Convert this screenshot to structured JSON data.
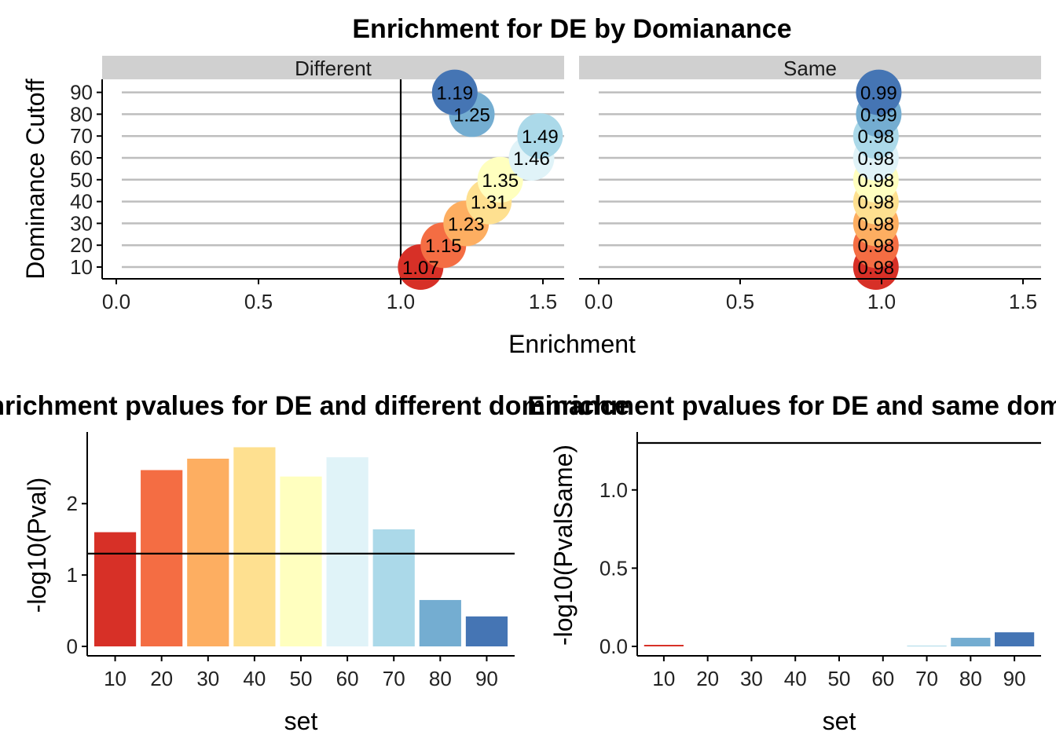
{
  "colors": {
    "10": "#d73027",
    "20": "#f46d43",
    "30": "#fdae61",
    "40": "#fee090",
    "50": "#ffffbf",
    "60": "#e0f3f8",
    "70": "#abd9e9",
    "80": "#74add1",
    "90": "#4575b4",
    "strip": "#d0d0d0",
    "gridline": "#bebebe"
  },
  "chart_data": [
    {
      "type": "scatter",
      "title": "Enrichment for DE by Domianance",
      "xlabel": "Enrichment",
      "ylabel": "Dominance Cutoff",
      "xlim": [
        0,
        1.5
      ],
      "x_ticks": [
        "0.0",
        "0.5",
        "1.0",
        "1.5"
      ],
      "y_ticks": [
        "10",
        "20",
        "30",
        "40",
        "50",
        "60",
        "70",
        "80",
        "90"
      ],
      "reference_x": 1.0,
      "panels": [
        {
          "strip": "Different",
          "points": [
            {
              "cutoff": 10,
              "x": 1.07,
              "label": "1.07"
            },
            {
              "cutoff": 20,
              "x": 1.15,
              "label": "1.15"
            },
            {
              "cutoff": 30,
              "x": 1.23,
              "label": "1.23"
            },
            {
              "cutoff": 40,
              "x": 1.31,
              "label": "1.31"
            },
            {
              "cutoff": 50,
              "x": 1.35,
              "label": "1.35"
            },
            {
              "cutoff": 60,
              "x": 1.46,
              "label": "1.46"
            },
            {
              "cutoff": 70,
              "x": 1.49,
              "label": "1.49"
            },
            {
              "cutoff": 80,
              "x": 1.25,
              "label": "1.25"
            },
            {
              "cutoff": 90,
              "x": 1.19,
              "label": "1.19"
            }
          ]
        },
        {
          "strip": "Same",
          "points": [
            {
              "cutoff": 10,
              "x": 0.98,
              "label": "0.98"
            },
            {
              "cutoff": 20,
              "x": 0.98,
              "label": "0.98"
            },
            {
              "cutoff": 30,
              "x": 0.98,
              "label": "0.98"
            },
            {
              "cutoff": 40,
              "x": 0.98,
              "label": "0.98"
            },
            {
              "cutoff": 50,
              "x": 0.98,
              "label": "0.98"
            },
            {
              "cutoff": 60,
              "x": 0.98,
              "label": "0.98"
            },
            {
              "cutoff": 70,
              "x": 0.98,
              "label": "0.98"
            },
            {
              "cutoff": 80,
              "x": 0.99,
              "label": "0.99"
            },
            {
              "cutoff": 90,
              "x": 0.99,
              "label": "0.99"
            }
          ]
        }
      ]
    },
    {
      "type": "bar",
      "title": "Enrichment pvalues for DE and different dominance",
      "xlabel": "set",
      "ylabel": "-log10(Pval)",
      "categories": [
        "10",
        "20",
        "30",
        "40",
        "50",
        "60",
        "70",
        "80",
        "90"
      ],
      "values": [
        1.6,
        2.47,
        2.63,
        2.79,
        2.38,
        2.65,
        1.64,
        0.65,
        0.42
      ],
      "ylim": [
        0,
        2.85
      ],
      "y_ticks": [
        0,
        1,
        2
      ],
      "reference_y": 1.3
    },
    {
      "type": "bar",
      "title": "Enrichment pvalues for DE and same dominance",
      "xlabel": "set",
      "ylabel": "-log10(PvalSame)",
      "categories": [
        "10",
        "20",
        "30",
        "40",
        "50",
        "60",
        "70",
        "80",
        "90"
      ],
      "values": [
        0.01,
        0.0,
        0.0,
        0.0,
        0.0,
        0.0,
        0.005,
        0.055,
        0.09
      ],
      "ylim": [
        0,
        1.3
      ],
      "y_ticks": [
        "0.0",
        "0.5",
        "1.0"
      ],
      "reference_y": 1.3
    }
  ]
}
